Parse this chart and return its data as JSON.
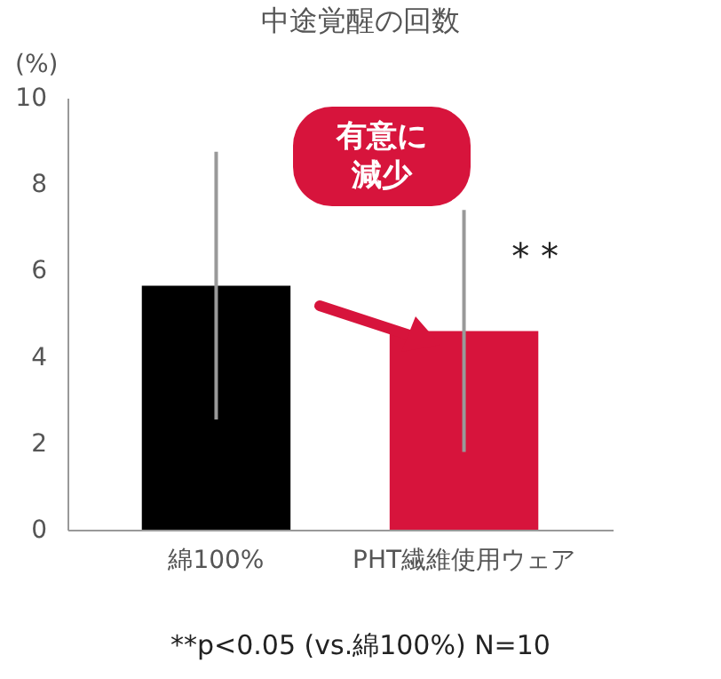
{
  "chart_data": {
    "type": "bar",
    "title": "中途覚醒の回数",
    "ylabel": "(%)",
    "categories": [
      "綿100%",
      "PHT繊維使用ウェア"
    ],
    "values": [
      5.65,
      4.6
    ],
    "colors": [
      "#000000",
      "#d7143c"
    ],
    "errors": [
      3.1,
      2.8
    ],
    "ylim": [
      0,
      10
    ],
    "yticks": [
      0,
      2,
      4,
      6,
      8,
      10
    ],
    "grid": false,
    "legend": false,
    "annotations": [
      {
        "text": "* *",
        "x": "PHT繊維使用ウェア",
        "y": 6.3
      },
      "有意に減少",
      "**p<0.05 (vs.綿100%)  N=10"
    ]
  }
}
